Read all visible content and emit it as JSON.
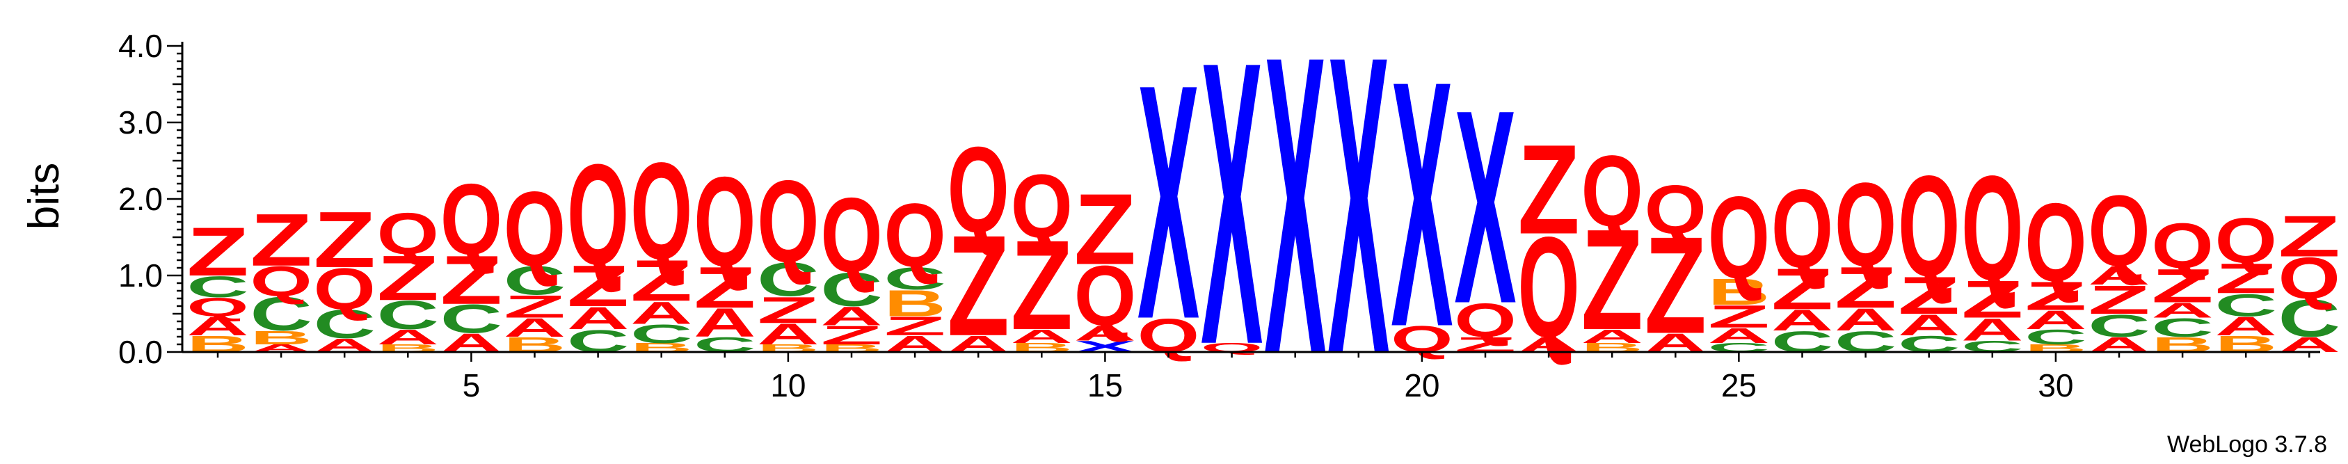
{
  "chart_data": {
    "type": "sequence-logo",
    "ylabel": "bits",
    "ylim": [
      0,
      4.0
    ],
    "yticks": [
      "0.0",
      "1.0",
      "2.0",
      "3.0",
      "4.0"
    ],
    "xtick_labels": [
      "5",
      "10",
      "15",
      "20",
      "25",
      "30"
    ],
    "credit": "WebLogo 3.7.8",
    "colors": {
      "Z": "#ff0000",
      "Q": "#ff0000",
      "X": "#0000ff",
      "C": "#228b22",
      "B": "#ff8c00",
      "A": "#ff0000"
    },
    "positions": [
      {
        "pos": 1,
        "stack": [
          {
            "l": "B",
            "h": 0.22
          },
          {
            "l": "A",
            "h": 0.25
          },
          {
            "l": "Q",
            "h": 0.25
          },
          {
            "l": "C",
            "h": 0.28
          },
          {
            "l": "Z",
            "h": 0.65
          }
        ]
      },
      {
        "pos": 2,
        "stack": [
          {
            "l": "A",
            "h": 0.1
          },
          {
            "l": "B",
            "h": 0.18
          },
          {
            "l": "C",
            "h": 0.45
          },
          {
            "l": "Q",
            "h": 0.4
          },
          {
            "l": "Z",
            "h": 0.7
          }
        ]
      },
      {
        "pos": 3,
        "stack": [
          {
            "l": "A",
            "h": 0.18
          },
          {
            "l": "C",
            "h": 0.38
          },
          {
            "l": "Q",
            "h": 0.55
          },
          {
            "l": "Z",
            "h": 0.75
          }
        ]
      },
      {
        "pos": 4,
        "stack": [
          {
            "l": "B",
            "h": 0.1
          },
          {
            "l": "A",
            "h": 0.2
          },
          {
            "l": "C",
            "h": 0.38
          },
          {
            "l": "Z",
            "h": 0.6
          },
          {
            "l": "Q",
            "h": 0.55
          }
        ]
      },
      {
        "pos": 5,
        "stack": [
          {
            "l": "A",
            "h": 0.25
          },
          {
            "l": "C",
            "h": 0.38
          },
          {
            "l": "Z",
            "h": 0.65
          },
          {
            "l": "Q",
            "h": 0.95
          }
        ]
      },
      {
        "pos": 6,
        "stack": [
          {
            "l": "B",
            "h": 0.2
          },
          {
            "l": "A",
            "h": 0.25
          },
          {
            "l": "Z",
            "h": 0.3
          },
          {
            "l": "C",
            "h": 0.38
          },
          {
            "l": "Q",
            "h": 1.0
          }
        ]
      },
      {
        "pos": 7,
        "stack": [
          {
            "l": "C",
            "h": 0.3
          },
          {
            "l": "A",
            "h": 0.3
          },
          {
            "l": "Z",
            "h": 0.55
          },
          {
            "l": "Q",
            "h": 1.35
          }
        ]
      },
      {
        "pos": 8,
        "stack": [
          {
            "l": "B",
            "h": 0.12
          },
          {
            "l": "C",
            "h": 0.25
          },
          {
            "l": "A",
            "h": 0.3
          },
          {
            "l": "Z",
            "h": 0.55
          },
          {
            "l": "Q",
            "h": 1.3
          }
        ]
      },
      {
        "pos": 9,
        "stack": [
          {
            "l": "C",
            "h": 0.2
          },
          {
            "l": "A",
            "h": 0.38
          },
          {
            "l": "Z",
            "h": 0.55
          },
          {
            "l": "Q",
            "h": 1.2
          }
        ]
      },
      {
        "pos": 10,
        "stack": [
          {
            "l": "B",
            "h": 0.1
          },
          {
            "l": "A",
            "h": 0.28
          },
          {
            "l": "Z",
            "h": 0.35
          },
          {
            "l": "C",
            "h": 0.45
          },
          {
            "l": "Q",
            "h": 1.1
          }
        ]
      },
      {
        "pos": 11,
        "stack": [
          {
            "l": "B",
            "h": 0.1
          },
          {
            "l": "Z",
            "h": 0.25
          },
          {
            "l": "A",
            "h": 0.25
          },
          {
            "l": "C",
            "h": 0.45
          },
          {
            "l": "Q",
            "h": 1.0
          }
        ]
      },
      {
        "pos": 12,
        "stack": [
          {
            "l": "A",
            "h": 0.22
          },
          {
            "l": "Z",
            "h": 0.25
          },
          {
            "l": "B",
            "h": 0.35
          },
          {
            "l": "C",
            "h": 0.3
          },
          {
            "l": "Q",
            "h": 0.85
          }
        ]
      },
      {
        "pos": 13,
        "stack": [
          {
            "l": "A",
            "h": 0.22
          },
          {
            "l": "Z",
            "h": 1.35
          },
          {
            "l": "Q",
            "h": 1.15
          }
        ]
      },
      {
        "pos": 14,
        "stack": [
          {
            "l": "B",
            "h": 0.12
          },
          {
            "l": "A",
            "h": 0.18
          },
          {
            "l": "Z",
            "h": 1.2
          },
          {
            "l": "Q",
            "h": 0.85
          }
        ]
      },
      {
        "pos": 15,
        "stack": [
          {
            "l": "X",
            "h": 0.15
          },
          {
            "l": "A",
            "h": 0.2
          },
          {
            "l": "Q",
            "h": 0.8
          },
          {
            "l": "Z",
            "h": 0.95
          }
        ]
      },
      {
        "pos": 16,
        "stack": [
          {
            "l": "Q",
            "h": 0.45
          },
          {
            "l": "X",
            "h": 3.15
          }
        ]
      },
      {
        "pos": 17,
        "stack": [
          {
            "l": "Q",
            "h": 0.12
          },
          {
            "l": "X",
            "h": 3.8
          }
        ]
      },
      {
        "pos": 18,
        "stack": [
          {
            "l": "X",
            "h": 4.0
          }
        ]
      },
      {
        "pos": 19,
        "stack": [
          {
            "l": "X",
            "h": 4.0
          }
        ]
      },
      {
        "pos": 20,
        "stack": [
          {
            "l": "Q",
            "h": 0.35
          },
          {
            "l": "X",
            "h": 3.3
          }
        ]
      },
      {
        "pos": 21,
        "stack": [
          {
            "l": "Z",
            "h": 0.2
          },
          {
            "l": "Q",
            "h": 0.45
          },
          {
            "l": "X",
            "h": 2.6
          }
        ]
      },
      {
        "pos": 22,
        "stack": [
          {
            "l": "A",
            "h": 0.2
          },
          {
            "l": "Q",
            "h": 1.35
          },
          {
            "l": "Z",
            "h": 1.2
          }
        ]
      },
      {
        "pos": 23,
        "stack": [
          {
            "l": "B",
            "h": 0.12
          },
          {
            "l": "A",
            "h": 0.18
          },
          {
            "l": "Z",
            "h": 1.35
          },
          {
            "l": "Q",
            "h": 0.95
          }
        ]
      },
      {
        "pos": 24,
        "stack": [
          {
            "l": "A",
            "h": 0.25
          },
          {
            "l": "Z",
            "h": 1.3
          },
          {
            "l": "Q",
            "h": 0.65
          }
        ]
      },
      {
        "pos": 25,
        "stack": [
          {
            "l": "C",
            "h": 0.12
          },
          {
            "l": "A",
            "h": 0.2
          },
          {
            "l": "Z",
            "h": 0.3
          },
          {
            "l": "B",
            "h": 0.35
          },
          {
            "l": "Q",
            "h": 1.1
          }
        ]
      },
      {
        "pos": 26,
        "stack": [
          {
            "l": "C",
            "h": 0.28
          },
          {
            "l": "A",
            "h": 0.28
          },
          {
            "l": "Z",
            "h": 0.55
          },
          {
            "l": "Q",
            "h": 1.05
          }
        ]
      },
      {
        "pos": 27,
        "stack": [
          {
            "l": "C",
            "h": 0.28
          },
          {
            "l": "A",
            "h": 0.3
          },
          {
            "l": "Z",
            "h": 0.55
          },
          {
            "l": "Q",
            "h": 1.12
          }
        ]
      },
      {
        "pos": 28,
        "stack": [
          {
            "l": "C",
            "h": 0.22
          },
          {
            "l": "A",
            "h": 0.28
          },
          {
            "l": "Z",
            "h": 0.5
          },
          {
            "l": "Q",
            "h": 1.35
          }
        ]
      },
      {
        "pos": 29,
        "stack": [
          {
            "l": "C",
            "h": 0.15
          },
          {
            "l": "A",
            "h": 0.3
          },
          {
            "l": "Z",
            "h": 0.5
          },
          {
            "l": "Q",
            "h": 1.4
          }
        ]
      },
      {
        "pos": 30,
        "stack": [
          {
            "l": "B",
            "h": 0.1
          },
          {
            "l": "C",
            "h": 0.2
          },
          {
            "l": "A",
            "h": 0.25
          },
          {
            "l": "Z",
            "h": 0.38
          },
          {
            "l": "Q",
            "h": 1.05
          }
        ]
      },
      {
        "pos": 31,
        "stack": [
          {
            "l": "A",
            "h": 0.2
          },
          {
            "l": "C",
            "h": 0.3
          },
          {
            "l": "Z",
            "h": 0.38
          },
          {
            "l": "A",
            "h": 0.25
          },
          {
            "l": "Q",
            "h": 0.95
          }
        ]
      },
      {
        "pos": 32,
        "stack": [
          {
            "l": "B",
            "h": 0.2
          },
          {
            "l": "C",
            "h": 0.25
          },
          {
            "l": "A",
            "h": 0.2
          },
          {
            "l": "Z",
            "h": 0.45
          },
          {
            "l": "Q",
            "h": 0.6
          }
        ]
      },
      {
        "pos": 33,
        "stack": [
          {
            "l": "B",
            "h": 0.22
          },
          {
            "l": "A",
            "h": 0.25
          },
          {
            "l": "C",
            "h": 0.3
          },
          {
            "l": "Z",
            "h": 0.4
          },
          {
            "l": "Q",
            "h": 0.6
          }
        ]
      },
      {
        "pos": 34,
        "stack": [
          {
            "l": "A",
            "h": 0.2
          },
          {
            "l": "C",
            "h": 0.5
          },
          {
            "l": "Q",
            "h": 0.55
          },
          {
            "l": "Z",
            "h": 0.55
          }
        ]
      }
    ]
  }
}
